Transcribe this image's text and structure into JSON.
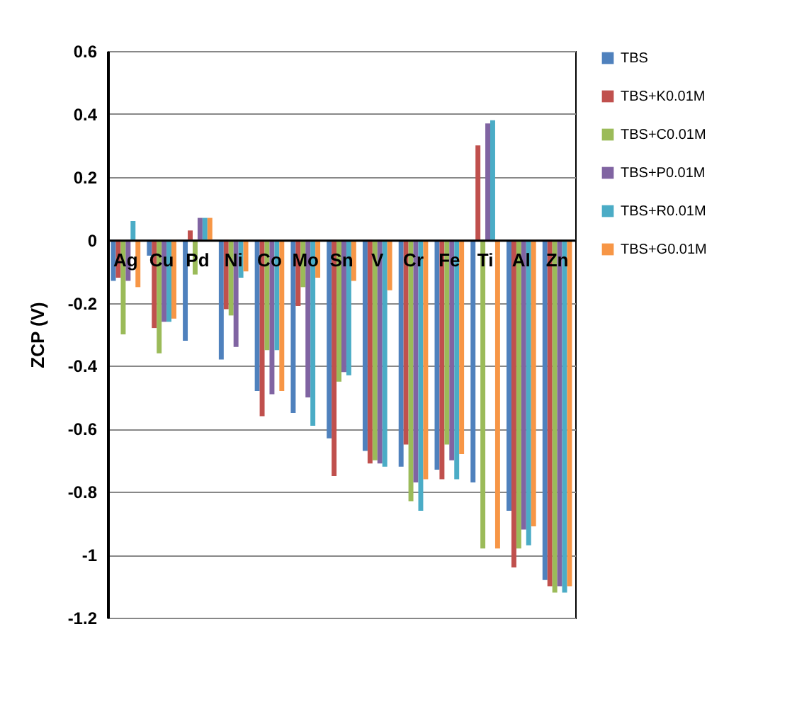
{
  "chart_data": {
    "type": "bar",
    "ylabel": "ZCP (V)",
    "categories": [
      "Ag",
      "Cu",
      "Pd",
      "Ni",
      "Co",
      "Mo",
      "Sn",
      "V",
      "Cr",
      "Fe",
      "Ti",
      "Al",
      "Zn"
    ],
    "series": [
      {
        "name": "TBS",
        "color": "#4f81bd",
        "values": [
          -0.13,
          -0.05,
          -0.32,
          -0.38,
          -0.48,
          -0.55,
          -0.63,
          -0.67,
          -0.72,
          -0.73,
          -0.77,
          -0.86,
          -1.08
        ]
      },
      {
        "name": "TBS+K0.01M",
        "color": "#c0504d",
        "values": [
          -0.12,
          -0.28,
          0.03,
          -0.22,
          -0.56,
          -0.21,
          -0.75,
          -0.71,
          -0.65,
          -0.76,
          0.3,
          -1.04,
          -1.1
        ]
      },
      {
        "name": "TBS+C0.01M",
        "color": "#9bbb59",
        "values": [
          -0.3,
          -0.36,
          -0.11,
          -0.24,
          -0.35,
          -0.15,
          -0.45,
          -0.7,
          -0.83,
          -0.65,
          -0.98,
          -0.98,
          -1.12
        ]
      },
      {
        "name": "TBS+P0.01M",
        "color": "#8064a2",
        "values": [
          -0.13,
          -0.26,
          0.07,
          -0.34,
          -0.49,
          -0.5,
          -0.42,
          -0.71,
          -0.77,
          -0.7,
          0.37,
          -0.92,
          -1.1
        ]
      },
      {
        "name": "TBS+R0.01M",
        "color": "#4bacc6",
        "values": [
          0.06,
          -0.26,
          0.07,
          -0.12,
          -0.35,
          -0.59,
          -0.43,
          -0.72,
          -0.86,
          -0.76,
          0.38,
          -0.97,
          -1.12
        ]
      },
      {
        "name": "TBS+G0.01M",
        "color": "#f79646",
        "values": [
          -0.15,
          -0.25,
          0.07,
          -0.1,
          -0.48,
          -0.12,
          -0.13,
          -0.16,
          -0.76,
          -0.68,
          -0.98,
          -0.91,
          -1.1
        ]
      }
    ],
    "ylim": [
      -1.2,
      0.6
    ],
    "yticks": [
      -1.2,
      -1,
      -0.8,
      -0.6,
      -0.4,
      -0.2,
      0,
      0.2,
      0.4,
      0.6
    ],
    "grid": "y",
    "legend": "right"
  }
}
